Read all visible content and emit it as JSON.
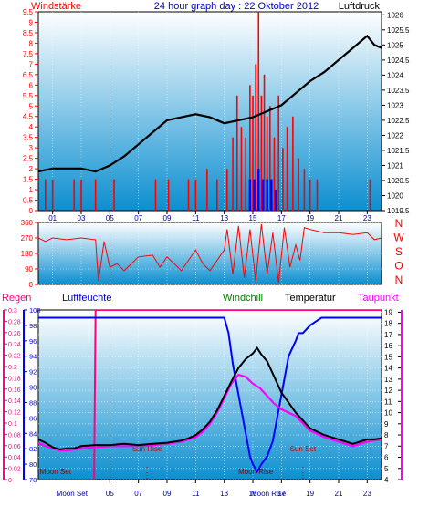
{
  "colors": {
    "wind": "#ff0000",
    "pressure": "#000000",
    "direction": "#ff0000",
    "humidity": "#0000ff",
    "temperature": "#000000",
    "dewpoint": "#ff00ff",
    "rain": "#ff0080",
    "windchill": "#008000",
    "gust": "#0000ff",
    "moon": "#800000",
    "panel_top": "#ffffff",
    "panel_bottom": "#0c8fd0"
  },
  "chart_data": [
    {
      "type": "line",
      "title": "24 hour graph day : 22 Oktober 2012",
      "left_label": "Windstärke",
      "right_label": "Luftdruck",
      "x_ticks": [
        "01",
        "03",
        "05",
        "07",
        "09",
        "11",
        "13",
        "15",
        "17",
        "19",
        "21",
        "23"
      ],
      "y_left_ticks": [
        "0",
        "0.5",
        "1",
        "1.5",
        "2",
        "2.5",
        "3",
        "3.5",
        "4",
        "4.5",
        "5",
        "5.5",
        "6",
        "6.5",
        "7",
        "7.5",
        "8",
        "8.5",
        "9",
        "9.5"
      ],
      "y_right_ticks": [
        "1019.5",
        "1020",
        "1020.5",
        "1021",
        "1021.5",
        "1022",
        "1022.5",
        "1023",
        "1023.5",
        "1024",
        "1024.5",
        "1025",
        "1025.5",
        "1026"
      ],
      "ylim_left": [
        0,
        9.5
      ],
      "ylim_right": [
        1019.5,
        1026.1
      ],
      "series": [
        {
          "name": "Luftdruck",
          "x": [
            0,
            1,
            2,
            3,
            4,
            5,
            6,
            7,
            8,
            9,
            10,
            11,
            12,
            13,
            14,
            15,
            16,
            17,
            18,
            19,
            20,
            21,
            22,
            23,
            23.5,
            24
          ],
          "values": [
            1020.8,
            1020.9,
            1020.9,
            1020.9,
            1020.8,
            1021.0,
            1021.3,
            1021.7,
            1022.1,
            1022.5,
            1022.6,
            1022.7,
            1022.6,
            1022.4,
            1022.5,
            1022.6,
            1022.8,
            1023.0,
            1023.4,
            1023.8,
            1024.1,
            1024.5,
            1024.9,
            1025.3,
            1025.0,
            1024.9
          ]
        },
        {
          "name": "Windstärke",
          "x": [
            0.5,
            1,
            2.5,
            3,
            4,
            5.3,
            8.2,
            9.1,
            10.5,
            11,
            11.8,
            12.5,
            13.2,
            13.6,
            13.9,
            14.2,
            14.5,
            14.8,
            15.0,
            15.2,
            15.4,
            15.6,
            15.8,
            16.0,
            16.2,
            16.5,
            16.8,
            17.1,
            17.4,
            17.8,
            18.2,
            18.6,
            19.0,
            19.5,
            23.2
          ],
          "values": [
            1.5,
            1.5,
            1.5,
            1.5,
            1.5,
            1.5,
            1.5,
            1.5,
            1.5,
            1.5,
            2.0,
            1.5,
            2.0,
            3.5,
            5.5,
            4.0,
            3.5,
            6.0,
            5.5,
            7.0,
            9.5,
            5.5,
            6.5,
            4.5,
            5.0,
            3.5,
            5.5,
            3.0,
            4.0,
            4.5,
            2.5,
            2.0,
            1.5,
            1.5,
            1.5
          ]
        },
        {
          "name": "Windböen",
          "x": [
            14.8,
            15.1,
            15.4,
            15.7,
            16.0,
            16.3,
            16.6
          ],
          "values": [
            1.5,
            1.5,
            2.0,
            1.5,
            1.5,
            1.5,
            1.0
          ]
        }
      ]
    },
    {
      "type": "line",
      "y_ticks": [
        "0",
        "90",
        "180",
        "270",
        "360"
      ],
      "right_labels": [
        "N",
        "W",
        "S",
        "O",
        "N"
      ],
      "ylim": [
        0,
        360
      ],
      "series": [
        {
          "name": "Windrichtung",
          "x": [
            0,
            0.5,
            1,
            2,
            3,
            4,
            4.2,
            4.6,
            5,
            5.5,
            6,
            7,
            8,
            8.5,
            9,
            10,
            11,
            11.5,
            12,
            13,
            13.2,
            13.6,
            14,
            14.4,
            14.8,
            15.2,
            15.6,
            16.0,
            16.4,
            16.8,
            17.2,
            17.6,
            18,
            18.3,
            18.6,
            19,
            20,
            21,
            22,
            23,
            23.5,
            24
          ],
          "values": [
            270,
            250,
            270,
            260,
            270,
            260,
            20,
            250,
            100,
            120,
            80,
            160,
            170,
            100,
            160,
            80,
            200,
            120,
            80,
            200,
            320,
            60,
            340,
            40,
            320,
            20,
            350,
            60,
            300,
            10,
            330,
            100,
            230,
            140,
            330,
            320,
            300,
            300,
            290,
            300,
            260,
            270
          ]
        }
      ]
    },
    {
      "type": "line",
      "left_label_1": "Regen",
      "left_label_2": "Luftfeuchte",
      "label_windchill": "Windchill",
      "label_temperature": "Temperatur",
      "right_label": "Taupunkt",
      "rain_ticks": [
        "0",
        "0.02",
        "0.04",
        "0.06",
        "0.08",
        "0.1",
        "0.12",
        "0.14",
        "0.16",
        "0.18",
        "0.2",
        "0.22",
        "0.24",
        "0.26",
        "0.28",
        "0.3"
      ],
      "humidity_ticks": [
        "78",
        "80",
        "82",
        "84",
        "86",
        "88",
        "90",
        "92",
        "94",
        "96",
        "98",
        "100"
      ],
      "temp_ticks": [
        "4",
        "5",
        "6",
        "7",
        "8",
        "9",
        "10",
        "11",
        "12",
        "13",
        "14",
        "15",
        "16",
        "17",
        "18",
        "19"
      ],
      "x_ticks": [
        "05",
        "07",
        "09",
        "11",
        "13",
        "15",
        "17",
        "19",
        "21",
        "23"
      ],
      "rain_lim": [
        0,
        0.3
      ],
      "humidity_lim": [
        78,
        100
      ],
      "temp_lim": [
        4,
        19.2
      ],
      "sun_rise": "Sun Rise",
      "sun_set": "Sun Set",
      "moon_set": "Moon Set",
      "moon_rise": "Moon Rise",
      "moon_set_axis": "Moon Set",
      "moon_rise_axis": "Moon Rise",
      "sun_rise_time": 7.6,
      "sun_set_time": 18.5,
      "moon_set_time": 1.2,
      "moon_rise_time": 15.2,
      "series": [
        {
          "name": "Temperatur",
          "x": [
            0,
            0.5,
            1,
            1.5,
            2,
            2.5,
            3,
            4,
            5,
            6,
            7,
            8,
            9,
            10,
            10.5,
            11,
            11.5,
            12,
            12.5,
            13,
            13.5,
            14,
            14.5,
            15,
            15.3,
            15.6,
            16,
            16.5,
            17,
            17.5,
            18,
            19,
            20,
            21,
            22,
            23,
            23.5,
            24
          ],
          "values": [
            7.6,
            7.3,
            6.9,
            6.7,
            6.8,
            6.8,
            7.0,
            7.1,
            7.1,
            7.2,
            7.1,
            7.2,
            7.3,
            7.5,
            7.7,
            8.0,
            8.5,
            9.2,
            10.2,
            11.5,
            12.8,
            14.0,
            14.8,
            15.3,
            15.8,
            15.2,
            14.6,
            13.2,
            11.8,
            10.9,
            10.0,
            8.6,
            8.0,
            7.6,
            7.2,
            7.6,
            7.6,
            7.7
          ]
        },
        {
          "name": "Taupunkt",
          "x": [
            0,
            0.5,
            1,
            1.5,
            2,
            2.5,
            3,
            4,
            5,
            6,
            7,
            8,
            9,
            10,
            10.5,
            11,
            11.5,
            12,
            12.5,
            13,
            13.5,
            14,
            14.5,
            15,
            15.5,
            16,
            16.5,
            17,
            17.5,
            18,
            19,
            20,
            21,
            22,
            23,
            23.5,
            24
          ],
          "values": [
            7.3,
            7.0,
            6.8,
            6.6,
            6.6,
            6.7,
            6.8,
            6.9,
            7.0,
            7.0,
            7.0,
            7.1,
            7.2,
            7.4,
            7.6,
            7.8,
            8.3,
            9.0,
            10.0,
            11.3,
            12.6,
            13.4,
            13.2,
            12.6,
            12.2,
            11.5,
            10.8,
            10.3,
            10.0,
            9.7,
            8.4,
            7.8,
            7.4,
            7.0,
            7.4,
            7.5,
            7.6
          ]
        },
        {
          "name": "Luftfeuchte",
          "x": [
            0,
            3.9,
            4.0,
            13,
            13.3,
            13.6,
            14,
            14.4,
            14.8,
            15,
            15.3,
            15.6,
            16,
            16.4,
            16.8,
            17.2,
            17.5,
            18,
            18.2,
            18.5,
            19,
            19.4,
            19.8,
            20.2,
            24
          ],
          "values": [
            99,
            99,
            99,
            99,
            97,
            93,
            89,
            85,
            81,
            80,
            79,
            80,
            81,
            83,
            87,
            91,
            94,
            96,
            97,
            97,
            98,
            98.5,
            99,
            99,
            99
          ]
        },
        {
          "name": "Regen",
          "x": [
            0,
            3.9,
            4.0,
            24
          ],
          "values": [
            0,
            0,
            0.3,
            0.3
          ]
        }
      ]
    }
  ]
}
